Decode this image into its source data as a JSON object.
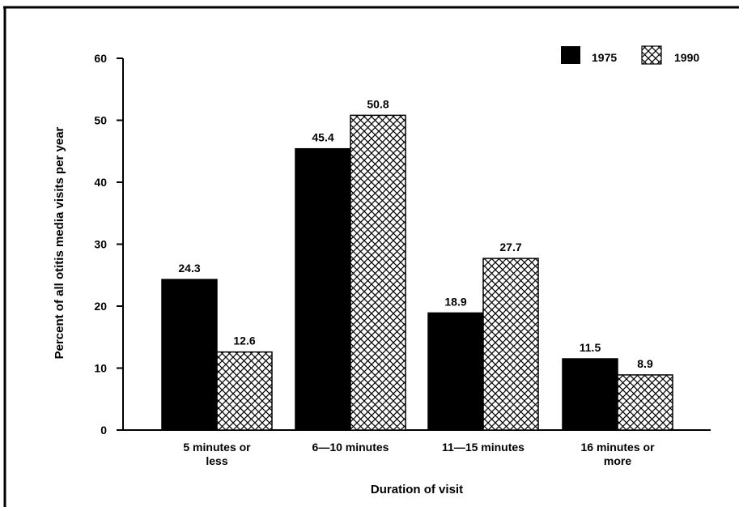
{
  "chart_data": {
    "type": "bar",
    "title": "",
    "xlabel": "Duration of visit",
    "ylabel": "Percent of all otitis media visits per year",
    "ylim": [
      0,
      60
    ],
    "yticks": [
      0,
      10,
      20,
      30,
      40,
      50,
      60
    ],
    "grid": false,
    "legend_position": "top-right",
    "categories": [
      [
        "5 minutes or",
        "less"
      ],
      [
        "6—10 minutes"
      ],
      [
        "11—15 minutes"
      ],
      [
        "16 minutes or",
        "more"
      ]
    ],
    "series": [
      {
        "name": "1975",
        "pattern": "solid",
        "color": "#000000",
        "values": [
          24.3,
          45.4,
          18.9,
          11.5
        ],
        "labels": [
          "24.3",
          "45.4",
          "18.9",
          "11.5"
        ]
      },
      {
        "name": "1990",
        "pattern": "crosshatch",
        "color": "#000000",
        "values": [
          12.6,
          50.8,
          27.7,
          8.9
        ],
        "labels": [
          "12.6",
          "50.8",
          "27.7",
          "8.9"
        ]
      }
    ]
  }
}
